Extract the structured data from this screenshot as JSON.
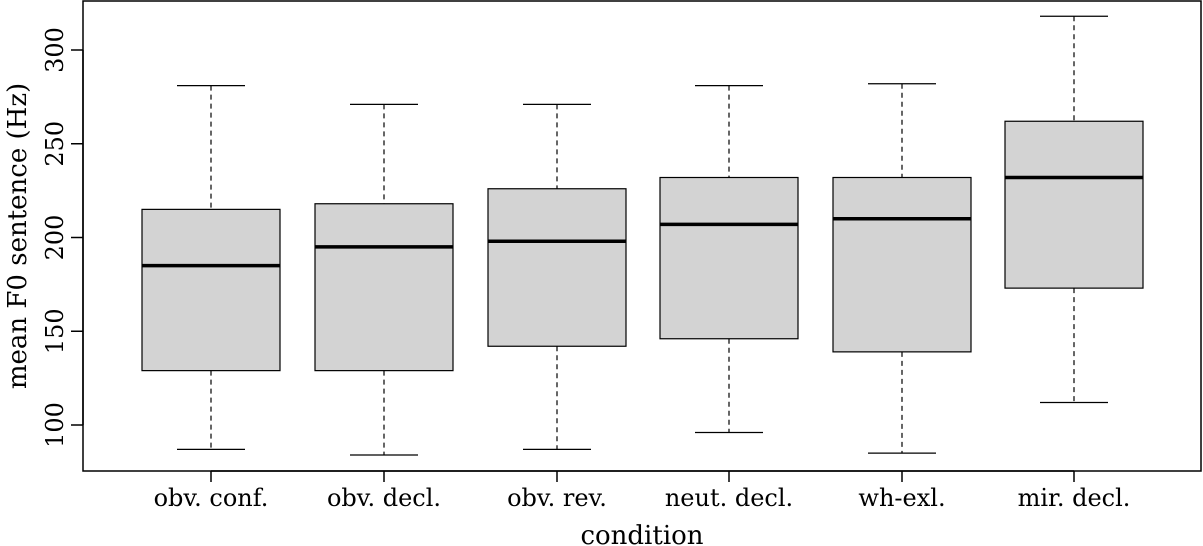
{
  "chart_data": {
    "type": "boxplot",
    "title": "",
    "xlabel": "condition",
    "ylabel": "mean F0 sentence (Hz)",
    "ylim": [
      80,
      325
    ],
    "yticks": [
      100,
      150,
      200,
      250,
      300
    ],
    "categories": [
      "obv. conf.",
      "obv. decl.",
      "obv. rev.",
      "neut. decl.",
      "wh-exl.",
      "mir. decl."
    ],
    "boxes": [
      {
        "whisker_low": 87,
        "q1": 129,
        "median": 185,
        "q3": 215,
        "whisker_high": 281
      },
      {
        "whisker_low": 84,
        "q1": 129,
        "median": 195,
        "q3": 218,
        "whisker_high": 271
      },
      {
        "whisker_low": 87,
        "q1": 142,
        "median": 198,
        "q3": 226,
        "whisker_high": 271
      },
      {
        "whisker_low": 96,
        "q1": 146,
        "median": 207,
        "q3": 232,
        "whisker_high": 281
      },
      {
        "whisker_low": 85,
        "q1": 139,
        "median": 210,
        "q3": 232,
        "whisker_high": 282
      },
      {
        "whisker_low": 112,
        "q1": 173,
        "median": 232,
        "q3": 262,
        "whisker_high": 318
      }
    ],
    "box_color": "#d3d3d3",
    "line_color": "#000000",
    "grid": false,
    "legend": "none"
  }
}
